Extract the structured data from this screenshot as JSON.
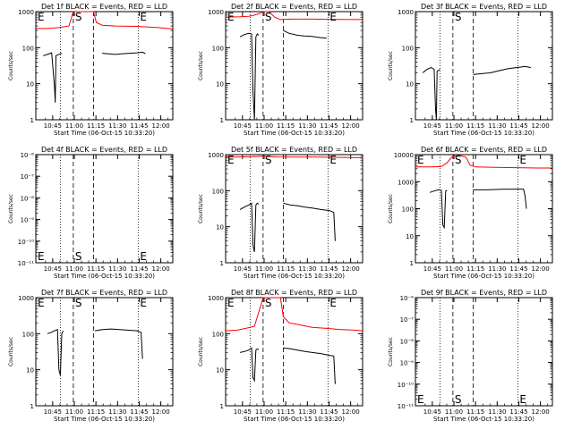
{
  "chart_data": [
    {
      "type": "line",
      "title": "Det 1f BLACK = Events, RED = LLD",
      "xlabel": "Start Time (06-Oct-15 10:33:20)",
      "ylabel": "Counts/sec",
      "x_tick_labels": [
        "10:45",
        "11:00",
        "11:15",
        "11:30",
        "11:45",
        "12:00"
      ],
      "y_tick_labels": [
        "1",
        "10",
        "100",
        "1000"
      ],
      "markers": [
        {
          "label": "E",
          "x_min": 0
        },
        {
          "label": "S",
          "x_min": 26
        },
        {
          "label": "E",
          "x_min": 71
        }
      ],
      "series": [
        {
          "color": "#ff0000",
          "points": [
            [
              0,
              340
            ],
            [
              8,
              340
            ],
            [
              16,
              360
            ],
            [
              23,
              400
            ],
            [
              26,
              1200
            ],
            [
              40,
              1200
            ],
            [
              42,
              500
            ],
            [
              46,
              420
            ],
            [
              55,
              400
            ],
            [
              70,
              390
            ],
            [
              85,
              360
            ],
            [
              95,
              330
            ]
          ]
        },
        {
          "color": "#000000",
          "points": [
            [
              5,
              60
            ],
            [
              8,
              65
            ],
            [
              11,
              72
            ],
            [
              13,
              8
            ],
            [
              13.5,
              3
            ],
            [
              14,
              60
            ],
            [
              17,
              68
            ],
            [
              18,
              70
            ]
          ]
        },
        {
          "color": "#000000",
          "points": [
            [
              46,
              70
            ],
            [
              50,
              68
            ],
            [
              55,
              65
            ],
            [
              60,
              68
            ],
            [
              65,
              70
            ],
            [
              70,
              72
            ],
            [
              74,
              75
            ],
            [
              76,
              68
            ]
          ]
        }
      ]
    },
    {
      "type": "line",
      "title": "Det 2f BLACK = Events, RED = LLD",
      "xlabel": "Start Time (06-Oct-15 10:33:20)",
      "ylabel": "Counts/sec",
      "x_tick_labels": [
        "10:45",
        "11:00",
        "11:15",
        "11:30",
        "11:45",
        "12:00"
      ],
      "y_tick_labels": [
        "1",
        "10",
        "100",
        "1000"
      ],
      "markers": [
        {
          "label": "E",
          "x_min": 0
        },
        {
          "label": "S",
          "x_min": 26
        },
        {
          "label": "E",
          "x_min": 71
        }
      ],
      "series": [
        {
          "color": "#ff0000",
          "points": [
            [
              0,
              700
            ],
            [
              10,
              720
            ],
            [
              16,
              740
            ],
            [
              20,
              800
            ],
            [
              24,
              900
            ],
            [
              26,
              1200
            ],
            [
              30,
              1200
            ],
            [
              34,
              700
            ],
            [
              38,
              600
            ],
            [
              46,
              620
            ],
            [
              60,
              620
            ],
            [
              75,
              610
            ],
            [
              95,
              600
            ]
          ]
        },
        {
          "color": "#000000",
          "points": [
            [
              10,
              200
            ],
            [
              13,
              230
            ],
            [
              16,
              250
            ],
            [
              18,
              240
            ],
            [
              19,
              6
            ],
            [
              20,
              1
            ],
            [
              21,
              200
            ],
            [
              22,
              240
            ],
            [
              23,
              220
            ]
          ]
        },
        {
          "color": "#000000",
          "points": [
            [
              40,
              300
            ],
            [
              44,
              250
            ],
            [
              50,
              220
            ],
            [
              55,
              210
            ],
            [
              60,
              205
            ],
            [
              66,
              190
            ],
            [
              70,
              185
            ]
          ]
        }
      ]
    },
    {
      "type": "line",
      "title": "Det 3f BLACK = Events, RED = LLD",
      "xlabel": "Start Time (06-Oct-15 10:33:20)",
      "ylabel": "Counts/sec",
      "x_tick_labels": [
        "10:45",
        "11:00",
        "11:15",
        "11:30",
        "11:45",
        "12:00"
      ],
      "y_tick_labels": [
        "1",
        "10",
        "100",
        "1000"
      ],
      "markers": [
        {
          "label": "S",
          "x_min": 26
        }
      ],
      "series": [
        {
          "color": "#000000",
          "points": [
            [
              5,
              20
            ],
            [
              8,
              25
            ],
            [
              11,
              28
            ],
            [
              13,
              25
            ],
            [
              14,
              2
            ],
            [
              14.5,
              1
            ],
            [
              15,
              22
            ],
            [
              17,
              25
            ]
          ]
        },
        {
          "color": "#000000",
          "points": [
            [
              40,
              18
            ],
            [
              46,
              19
            ],
            [
              52,
              20
            ],
            [
              58,
              23
            ],
            [
              64,
              26
            ],
            [
              70,
              28
            ],
            [
              76,
              30
            ],
            [
              80,
              28
            ]
          ]
        }
      ]
    },
    {
      "type": "line",
      "title": "Det 4f BLACK = Events, RED = LLD",
      "xlabel": "Start Time (06-Oct-15 10:33:20)",
      "ylabel": "Counts/sec",
      "x_tick_labels": [
        "10:45",
        "11:00",
        "11:15",
        "11:30",
        "11:45",
        "12:00"
      ],
      "y_tick_labels": [
        "10⁻¹¹",
        "10⁻¹⁰",
        "10⁻⁹",
        "10⁻⁸",
        "10⁻⁷",
        "10⁻⁶"
      ],
      "markers": [
        {
          "label": "E",
          "x_min": 0
        },
        {
          "label": "S",
          "x_min": 26
        },
        {
          "label": "E",
          "x_min": 71
        }
      ],
      "series": []
    },
    {
      "type": "line",
      "title": "Det 5f BLACK = Events, RED = LLD",
      "xlabel": "Start Time (06-Oct-15 10:33:20)",
      "ylabel": "Counts/sec",
      "x_tick_labels": [
        "10:45",
        "11:00",
        "11:15",
        "11:30",
        "11:45",
        "12:00"
      ],
      "y_tick_labels": [
        "1",
        "10",
        "100",
        "1000"
      ],
      "markers": [
        {
          "label": "E",
          "x_min": 0
        },
        {
          "label": "S",
          "x_min": 26
        },
        {
          "label": "E",
          "x_min": 71
        }
      ],
      "series": [
        {
          "color": "#ff0000",
          "points": [
            [
              0,
              850
            ],
            [
              10,
              860
            ],
            [
              20,
              880
            ],
            [
              26,
              900
            ],
            [
              35,
              860
            ],
            [
              50,
              850
            ],
            [
              65,
              850
            ],
            [
              80,
              840
            ],
            [
              95,
              820
            ]
          ]
        },
        {
          "color": "#000000",
          "points": [
            [
              10,
              30
            ],
            [
              13,
              35
            ],
            [
              16,
              40
            ],
            [
              18,
              45
            ],
            [
              19,
              3
            ],
            [
              20,
              2
            ],
            [
              21,
              40
            ],
            [
              22,
              45
            ],
            [
              23,
              42
            ]
          ]
        },
        {
          "color": "#000000",
          "points": [
            [
              40,
              45
            ],
            [
              45,
              40
            ],
            [
              50,
              38
            ],
            [
              55,
              35
            ],
            [
              60,
              33
            ],
            [
              66,
              30
            ],
            [
              72,
              28
            ],
            [
              75,
              25
            ],
            [
              76,
              4
            ]
          ]
        }
      ]
    },
    {
      "type": "line",
      "title": "Det 6f BLACK = Events, RED = LLD",
      "xlabel": "Start Time (06-Oct-15 10:33:20)",
      "ylabel": "Counts/sec",
      "x_tick_labels": [
        "10:45",
        "11:00",
        "11:15",
        "11:30",
        "11:45",
        "12:00"
      ],
      "y_tick_labels": [
        "1",
        "10",
        "100",
        "1000",
        "10000"
      ],
      "markers": [
        {
          "label": "E",
          "x_min": 0
        },
        {
          "label": "S",
          "x_min": 26
        },
        {
          "label": "E",
          "x_min": 71
        }
      ],
      "series": [
        {
          "color": "#ff0000",
          "points": [
            [
              0,
              3500
            ],
            [
              10,
              3500
            ],
            [
              18,
              3600
            ],
            [
              22,
              5000
            ],
            [
              25,
              8000
            ],
            [
              30,
              9500
            ],
            [
              35,
              8000
            ],
            [
              38,
              4000
            ],
            [
              42,
              3500
            ],
            [
              55,
              3400
            ],
            [
              70,
              3300
            ],
            [
              85,
              3200
            ],
            [
              95,
              3200
            ]
          ]
        },
        {
          "color": "#000000",
          "points": [
            [
              10,
              400
            ],
            [
              13,
              450
            ],
            [
              16,
              500
            ],
            [
              18,
              480
            ],
            [
              19,
              25
            ],
            [
              20,
              20
            ],
            [
              21,
              450
            ],
            [
              22,
              480
            ]
          ]
        },
        {
          "color": "#000000",
          "points": [
            [
              40,
              500
            ],
            [
              50,
              500
            ],
            [
              60,
              520
            ],
            [
              70,
              530
            ],
            [
              75,
              530
            ],
            [
              76,
              300
            ],
            [
              77,
              100
            ]
          ]
        }
      ]
    },
    {
      "type": "line",
      "title": "Det 7f BLACK = Events, RED = LLD",
      "xlabel": "Start Time (06-Oct-15 10:33:20)",
      "ylabel": "Counts/sec",
      "x_tick_labels": [
        "10:45",
        "11:00",
        "11:15",
        "11:30",
        "11:45",
        "12:00"
      ],
      "y_tick_labels": [
        "1",
        "10",
        "100",
        "1000"
      ],
      "markers": [
        {
          "label": "E",
          "x_min": 0
        },
        {
          "label": "S",
          "x_min": 26
        },
        {
          "label": "E",
          "x_min": 71
        }
      ],
      "series": [
        {
          "color": "#000000",
          "points": [
            [
              8,
              100
            ],
            [
              11,
              110
            ],
            [
              13,
              120
            ],
            [
              15,
              130
            ],
            [
              16,
              10
            ],
            [
              17,
              7
            ],
            [
              18,
              100
            ],
            [
              19,
              120
            ]
          ]
        },
        {
          "color": "#000000",
          "points": [
            [
              41,
              120
            ],
            [
              46,
              130
            ],
            [
              52,
              135
            ],
            [
              58,
              130
            ],
            [
              64,
              125
            ],
            [
              70,
              120
            ],
            [
              73,
              110
            ],
            [
              74,
              20
            ]
          ]
        }
      ]
    },
    {
      "type": "line",
      "title": "Det 8f BLACK = Events, RED = LLD",
      "xlabel": "Start Time (06-Oct-15 10:33:20)",
      "ylabel": "Counts/sec",
      "x_tick_labels": [
        "10:45",
        "11:00",
        "11:15",
        "11:30",
        "11:45",
        "12:00"
      ],
      "y_tick_labels": [
        "1",
        "10",
        "100",
        "1000"
      ],
      "markers": [
        {
          "label": "E",
          "x_min": 0
        },
        {
          "label": "S",
          "x_min": 26
        },
        {
          "label": "E",
          "x_min": 71
        }
      ],
      "series": [
        {
          "color": "#ff0000",
          "points": [
            [
              0,
              120
            ],
            [
              8,
              125
            ],
            [
              14,
              140
            ],
            [
              20,
              160
            ],
            [
              26,
              1200
            ],
            [
              38,
              1200
            ],
            [
              40,
              300
            ],
            [
              44,
              200
            ],
            [
              50,
              180
            ],
            [
              60,
              150
            ],
            [
              70,
              140
            ],
            [
              80,
              130
            ],
            [
              90,
              125
            ],
            [
              95,
              120
            ]
          ]
        },
        {
          "color": "#000000",
          "points": [
            [
              10,
              30
            ],
            [
              13,
              32
            ],
            [
              16,
              35
            ],
            [
              18,
              40
            ],
            [
              19,
              6
            ],
            [
              20,
              5
            ],
            [
              21,
              35
            ],
            [
              22,
              38
            ],
            [
              23,
              36
            ]
          ]
        },
        {
          "color": "#000000",
          "points": [
            [
              40,
              40
            ],
            [
              45,
              38
            ],
            [
              50,
              35
            ],
            [
              55,
              32
            ],
            [
              60,
              30
            ],
            [
              66,
              28
            ],
            [
              72,
              25
            ],
            [
              75,
              24
            ],
            [
              76,
              4
            ]
          ]
        }
      ]
    },
    {
      "type": "line",
      "title": "Det 9f BLACK = Events, RED = LLD",
      "xlabel": "Start Time (06-Oct-15 10:33:20)",
      "ylabel": "Counts/sec",
      "x_tick_labels": [
        "10:45",
        "11:00",
        "11:15",
        "11:30",
        "11:45",
        "12:00"
      ],
      "y_tick_labels": [
        "10⁻¹¹",
        "10⁻¹⁰",
        "10⁻⁹",
        "10⁻⁸",
        "10⁻⁷",
        "10⁻⁶"
      ],
      "markers": [
        {
          "label": "E",
          "x_min": 0
        },
        {
          "label": "S",
          "x_min": 26
        },
        {
          "label": "E",
          "x_min": 71
        }
      ],
      "series": []
    }
  ]
}
